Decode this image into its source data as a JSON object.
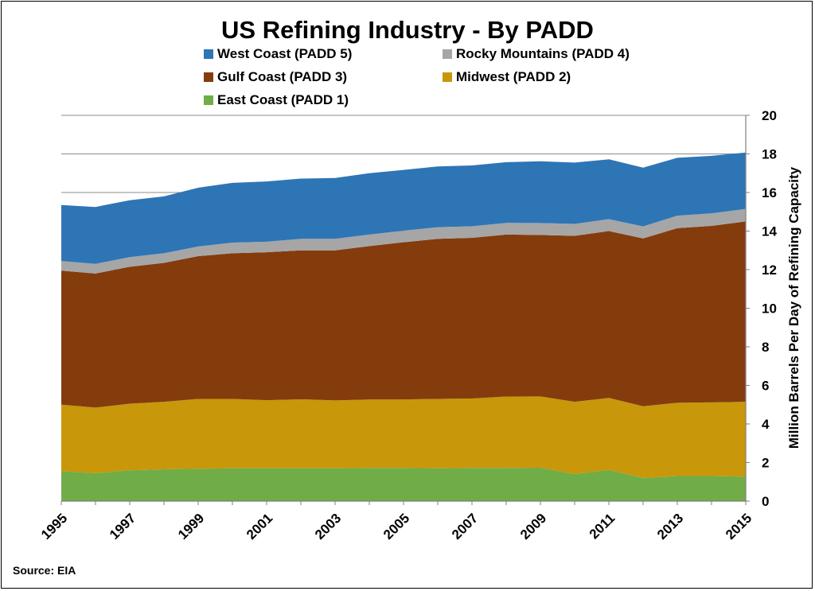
{
  "chart_data": {
    "type": "area",
    "stacked": true,
    "title": "US Refining Industry - By PADD",
    "ylabel": "Million Barrels Per Day of Refining Capacity",
    "xlabel": "",
    "y_axis_side": "right",
    "ylim": [
      0,
      20
    ],
    "y_ticks": [
      0,
      2,
      4,
      6,
      8,
      10,
      12,
      14,
      16,
      18,
      20
    ],
    "y_tick_labels": [
      "0",
      "2",
      "4",
      "6",
      "8",
      "10",
      "12",
      "14",
      "16",
      "18",
      "20"
    ],
    "x": [
      1995,
      1996,
      1997,
      1998,
      1999,
      2000,
      2001,
      2002,
      2003,
      2004,
      2005,
      2006,
      2007,
      2008,
      2009,
      2010,
      2011,
      2012,
      2013,
      2014,
      2015
    ],
    "x_tick_labels": [
      "1995",
      "1997",
      "1999",
      "2001",
      "2003",
      "2005",
      "2007",
      "2009",
      "2011",
      "2013",
      "2015"
    ],
    "x_tick_values": [
      1995,
      1997,
      1999,
      2001,
      2003,
      2005,
      2007,
      2009,
      2011,
      2013,
      2015
    ],
    "grid": true,
    "legend_position": "top",
    "source": "Source: EIA",
    "series": [
      {
        "name": "East Coast (PADD 1)",
        "color": "#70ad47",
        "values": [
          1.55,
          1.45,
          1.6,
          1.65,
          1.68,
          1.7,
          1.7,
          1.7,
          1.7,
          1.72,
          1.72,
          1.7,
          1.72,
          1.72,
          1.73,
          1.4,
          1.62,
          1.2,
          1.3,
          1.3,
          1.27
        ]
      },
      {
        "name": "Midwest (PADD 2)",
        "color": "#c8970a",
        "values": [
          3.45,
          3.4,
          3.45,
          3.5,
          3.62,
          3.6,
          3.53,
          3.58,
          3.52,
          3.55,
          3.55,
          3.6,
          3.6,
          3.7,
          3.7,
          3.75,
          3.73,
          3.72,
          3.8,
          3.82,
          3.88
        ]
      },
      {
        "name": "Gulf Coast (PADD 3)",
        "color": "#843c0c",
        "values": [
          6.95,
          6.95,
          7.1,
          7.2,
          7.4,
          7.55,
          7.67,
          7.72,
          7.78,
          7.95,
          8.15,
          8.3,
          8.33,
          8.4,
          8.37,
          8.6,
          8.65,
          8.7,
          9.05,
          9.15,
          9.35
        ]
      },
      {
        "name": "Rocky Mountains (PADD 4)",
        "color": "#a6a6a6",
        "values": [
          0.5,
          0.5,
          0.5,
          0.5,
          0.5,
          0.55,
          0.55,
          0.6,
          0.6,
          0.6,
          0.6,
          0.6,
          0.6,
          0.6,
          0.62,
          0.62,
          0.62,
          0.62,
          0.65,
          0.65,
          0.65
        ]
      },
      {
        "name": "West Coast (PADD 5)",
        "color": "#2e75b6",
        "values": [
          2.9,
          2.95,
          2.95,
          2.95,
          3.05,
          3.1,
          3.12,
          3.12,
          3.15,
          3.18,
          3.15,
          3.15,
          3.15,
          3.15,
          3.2,
          3.18,
          3.1,
          3.05,
          3.0,
          2.98,
          2.92
        ]
      }
    ],
    "legend_order": [
      "West Coast (PADD 5)",
      "Rocky Mountains (PADD 4)",
      "Gulf Coast (PADD 3)",
      "Midwest (PADD 2)",
      "East Coast (PADD 1)"
    ]
  }
}
